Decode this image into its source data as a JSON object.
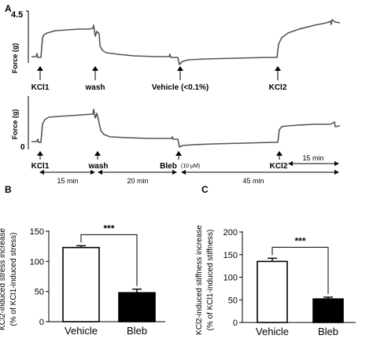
{
  "panels": {
    "a": {
      "label": "A"
    },
    "b": {
      "label": "B"
    },
    "c": {
      "label": "C"
    }
  },
  "panel_a": {
    "ylabel": "Force (g)",
    "ytick_max": "4.5",
    "ytick_min": "0",
    "top_events": [
      "KCl1",
      "wash",
      "Vehicle (<0.1%)",
      "KCl2"
    ],
    "bottom_events": [
      "KCl1",
      "wash",
      "Bleb",
      "KCl2"
    ],
    "bleb_dose": "(10 μM)",
    "durations": [
      "15 min",
      "20 min",
      "45 min",
      "15 min"
    ]
  },
  "colors": {
    "trace": "#555555",
    "vehicle_bar": "#ffffff",
    "bleb_bar": "#000000"
  },
  "chart_data": [
    {
      "type": "line",
      "panel": "A (top)",
      "ylabel": "Force (g)",
      "ylim": [
        0,
        4.5
      ],
      "x_events": [
        "KCl1",
        "wash",
        "Vehicle (<0.1%)",
        "KCl2"
      ],
      "segments": [
        {
          "t": 0,
          "force": 0.1
        },
        {
          "t": 1,
          "force": 3.2
        },
        {
          "t": 16,
          "force": 3.3
        },
        {
          "t": 17,
          "force": 0.5
        },
        {
          "t": 37,
          "force": 0.2
        },
        {
          "t": 38,
          "force": 0.0
        },
        {
          "t": 55,
          "force": 0.2
        },
        {
          "t": 56,
          "force": 3.4
        },
        {
          "t": 70,
          "force": 4.1
        }
      ]
    },
    {
      "type": "line",
      "panel": "A (bottom)",
      "ylabel": "Force (g)",
      "ylim": [
        0,
        4.5
      ],
      "x_events": [
        "KCl1",
        "wash",
        "Bleb (10 μM)",
        "KCl2"
      ],
      "segments": [
        {
          "t": 0,
          "force": 0.1
        },
        {
          "t": 1,
          "force": 3.1
        },
        {
          "t": 16,
          "force": 3.4
        },
        {
          "t": 17,
          "force": 0.9
        },
        {
          "t": 37,
          "force": 0.5
        },
        {
          "t": 38,
          "force": 0.1
        },
        {
          "t": 55,
          "force": 0.4
        },
        {
          "t": 56,
          "force": 1.2
        },
        {
          "t": 70,
          "force": 1.5
        }
      ]
    },
    {
      "type": "bar",
      "panel": "B",
      "categories": [
        "Vehicle",
        "Bleb"
      ],
      "values": [
        123,
        48
      ],
      "errors": [
        3,
        6
      ],
      "ylabel": "KCl2-induced stress increase (% of KCl1-induced stress)",
      "ylim": [
        0,
        150
      ],
      "yticks": [
        0,
        50,
        100,
        150
      ],
      "significance": "***"
    },
    {
      "type": "bar",
      "panel": "C",
      "categories": [
        "Vehicle",
        "Bleb"
      ],
      "values": [
        135,
        52
      ],
      "errors": [
        7,
        4
      ],
      "ylabel": "KCl2-induced stiffness increase (% of KCl1-induced stiffness)",
      "ylim": [
        0,
        200
      ],
      "yticks": [
        0,
        50,
        100,
        150,
        200
      ],
      "significance": "***"
    }
  ]
}
